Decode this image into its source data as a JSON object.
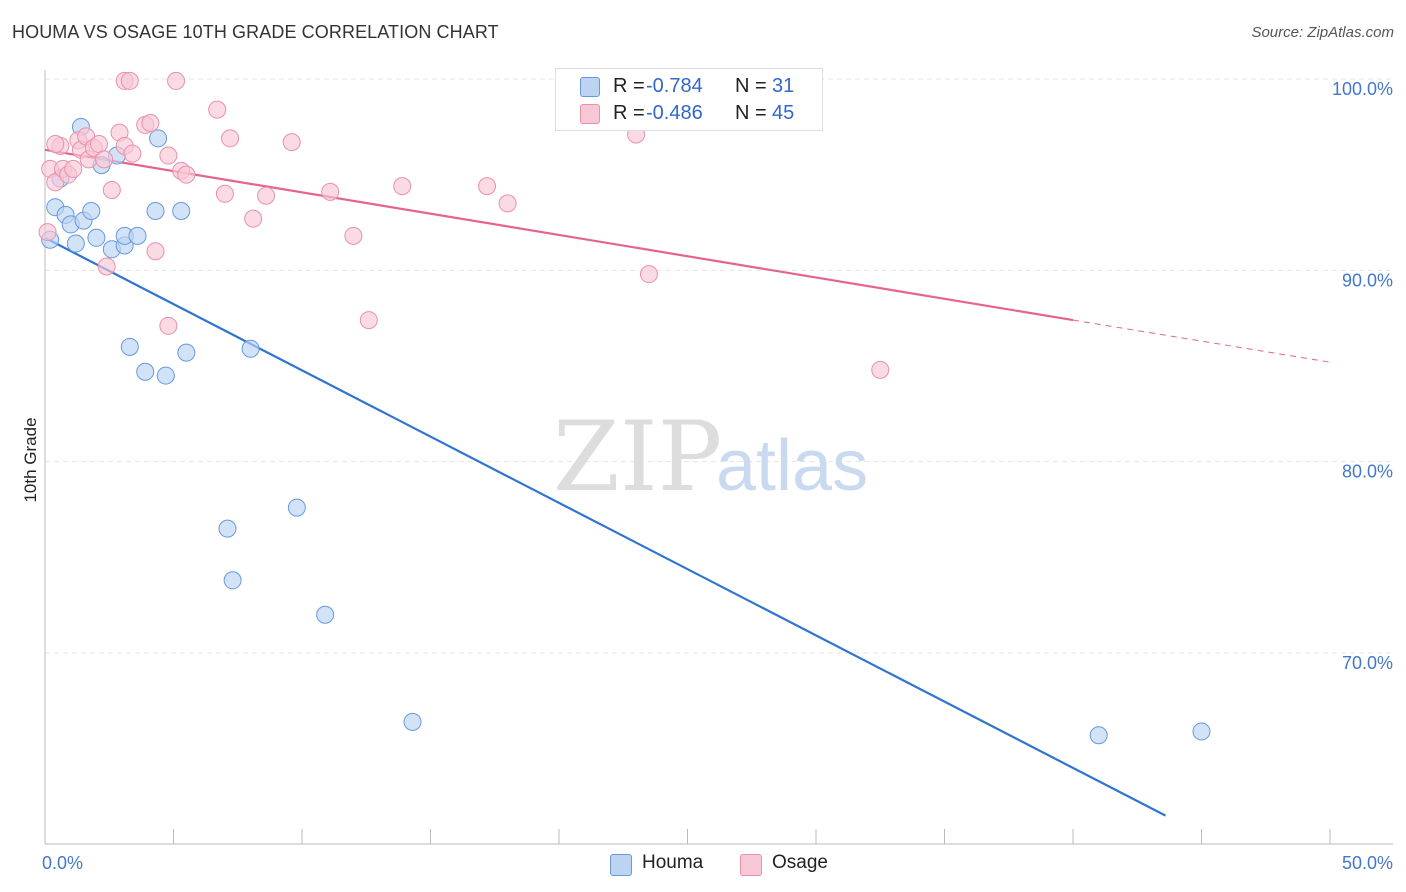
{
  "chart_data": {
    "type": "scatter",
    "title": "HOUMA VS OSAGE 10TH GRADE CORRELATION CHART",
    "source": "Source: ZipAtlas.com",
    "xlabel": "",
    "ylabel": "10th Grade",
    "xlim": [
      0,
      50
    ],
    "ylim": [
      61.5,
      102
    ],
    "x_tick_labels": [
      "0.0%",
      "50.0%"
    ],
    "y_ticks": [
      70,
      80,
      90,
      100
    ],
    "y_tick_labels": [
      "70.0%",
      "80.0%",
      "90.0%",
      "100.0%"
    ],
    "grid": true,
    "watermark": {
      "part1": "ZIP",
      "part2": "atlas"
    },
    "legend": [
      {
        "r_label": "R =",
        "r_value": "-0.784",
        "n_label": "N =",
        "n_value": "31"
      },
      {
        "r_label": "R =",
        "r_value": "-0.486",
        "n_label": "N =",
        "n_value": "45"
      }
    ],
    "series": [
      {
        "name": "Houma",
        "color": "#6699dd",
        "fill": "#bcd4f2",
        "line_color": "#2f74d0",
        "trend": {
          "x1": 0,
          "y1": 91.7,
          "x2": 43.6,
          "y2": 61.5,
          "dashed_to": null
        },
        "points": [
          [
            0.2,
            91.6
          ],
          [
            0.4,
            93.3
          ],
          [
            0.6,
            94.8
          ],
          [
            0.8,
            92.9
          ],
          [
            1.0,
            92.4
          ],
          [
            1.2,
            91.4
          ],
          [
            1.4,
            97.5
          ],
          [
            1.5,
            92.6
          ],
          [
            1.8,
            93.1
          ],
          [
            2.0,
            91.7
          ],
          [
            2.2,
            95.5
          ],
          [
            2.6,
            91.1
          ],
          [
            2.8,
            96.0
          ],
          [
            3.1,
            91.3
          ],
          [
            3.1,
            91.8
          ],
          [
            3.6,
            91.8
          ],
          [
            3.3,
            86.0
          ],
          [
            3.9,
            84.7
          ],
          [
            4.3,
            93.1
          ],
          [
            4.4,
            96.9
          ],
          [
            4.7,
            84.5
          ],
          [
            5.3,
            93.1
          ],
          [
            5.5,
            85.7
          ],
          [
            8.0,
            85.9
          ],
          [
            7.1,
            76.5
          ],
          [
            7.3,
            73.8
          ],
          [
            9.8,
            77.6
          ],
          [
            10.9,
            72.0
          ],
          [
            14.3,
            66.4
          ],
          [
            41.0,
            65.7
          ],
          [
            45.0,
            65.9
          ]
        ]
      },
      {
        "name": "Osage",
        "color": "#e890ad",
        "fill": "#f7c7d6",
        "line_color": "#e4648e",
        "trend": {
          "x1": 0,
          "y1": 96.3,
          "x2": 40.0,
          "y2": 87.4,
          "dashed_to": {
            "x": 50,
            "y": 85.2
          }
        },
        "points": [
          [
            0.1,
            92.0
          ],
          [
            0.2,
            95.3
          ],
          [
            0.4,
            94.6
          ],
          [
            0.6,
            96.5
          ],
          [
            0.7,
            95.3
          ],
          [
            0.9,
            95.0
          ],
          [
            1.1,
            95.3
          ],
          [
            1.3,
            96.8
          ],
          [
            1.4,
            96.3
          ],
          [
            1.6,
            97.0
          ],
          [
            1.7,
            95.8
          ],
          [
            1.9,
            96.4
          ],
          [
            2.1,
            96.6
          ],
          [
            2.3,
            95.8
          ],
          [
            2.4,
            90.2
          ],
          [
            2.6,
            94.2
          ],
          [
            2.9,
            97.2
          ],
          [
            3.1,
            96.5
          ],
          [
            3.4,
            96.1
          ],
          [
            3.1,
            99.9
          ],
          [
            3.3,
            99.9
          ],
          [
            3.9,
            97.6
          ],
          [
            4.1,
            97.7
          ],
          [
            4.3,
            91.0
          ],
          [
            4.8,
            96.0
          ],
          [
            4.8,
            87.1
          ],
          [
            5.1,
            99.9
          ],
          [
            5.3,
            95.2
          ],
          [
            5.5,
            95.0
          ],
          [
            6.7,
            98.4
          ],
          [
            7.0,
            94.0
          ],
          [
            7.2,
            96.9
          ],
          [
            8.1,
            92.7
          ],
          [
            8.6,
            93.9
          ],
          [
            9.6,
            96.7
          ],
          [
            11.1,
            94.1
          ],
          [
            12.0,
            91.8
          ],
          [
            12.6,
            87.4
          ],
          [
            13.9,
            94.4
          ],
          [
            17.2,
            94.4
          ],
          [
            18.0,
            93.5
          ],
          [
            23.0,
            97.1
          ],
          [
            23.5,
            89.8
          ],
          [
            32.5,
            84.8
          ],
          [
            0.4,
            96.6
          ]
        ]
      }
    ]
  }
}
